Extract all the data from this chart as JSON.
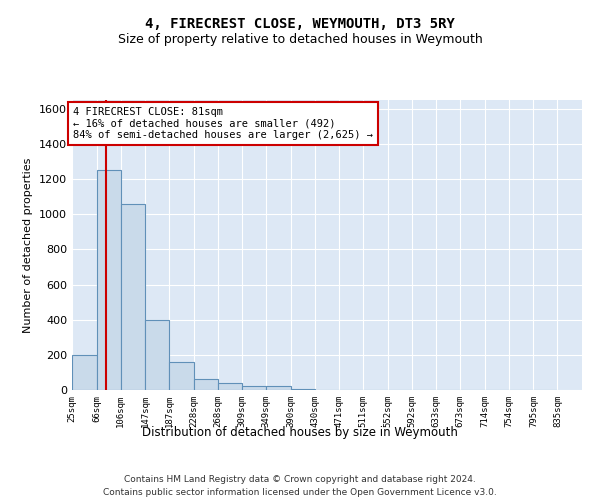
{
  "title": "4, FIRECREST CLOSE, WEYMOUTH, DT3 5RY",
  "subtitle": "Size of property relative to detached houses in Weymouth",
  "xlabel": "Distribution of detached houses by size in Weymouth",
  "ylabel": "Number of detached properties",
  "footer_line1": "Contains HM Land Registry data © Crown copyright and database right 2024.",
  "footer_line2": "Contains public sector information licensed under the Open Government Licence v3.0.",
  "bin_edges": [
    25,
    66,
    106,
    147,
    187,
    228,
    268,
    309,
    349,
    390,
    430,
    471,
    511,
    552,
    592,
    633,
    673,
    714,
    754,
    795,
    835
  ],
  "bin_labels": [
    "25sqm",
    "66sqm",
    "106sqm",
    "147sqm",
    "187sqm",
    "228sqm",
    "268sqm",
    "309sqm",
    "349sqm",
    "390sqm",
    "430sqm",
    "471sqm",
    "511sqm",
    "552sqm",
    "592sqm",
    "633sqm",
    "673sqm",
    "714sqm",
    "754sqm",
    "795sqm",
    "835sqm"
  ],
  "bar_values": [
    200,
    1250,
    1060,
    400,
    160,
    60,
    40,
    20,
    20,
    5,
    0,
    0,
    0,
    0,
    0,
    0,
    0,
    0,
    0,
    0
  ],
  "bar_color": "#c9daea",
  "bar_edge_color": "#6090b8",
  "property_line_x": 81,
  "property_line_color": "#cc0000",
  "annotation_line1": "4 FIRECREST CLOSE: 81sqm",
  "annotation_line2": "← 16% of detached houses are smaller (492)",
  "annotation_line3": "84% of semi-detached houses are larger (2,625) →",
  "annotation_box_color": "#cc0000",
  "annotation_fill": "white",
  "ylim": [
    0,
    1650
  ],
  "yticks": [
    0,
    200,
    400,
    600,
    800,
    1000,
    1200,
    1400,
    1600
  ],
  "background_color": "#dde8f5",
  "title_fontsize": 10,
  "subtitle_fontsize": 9
}
